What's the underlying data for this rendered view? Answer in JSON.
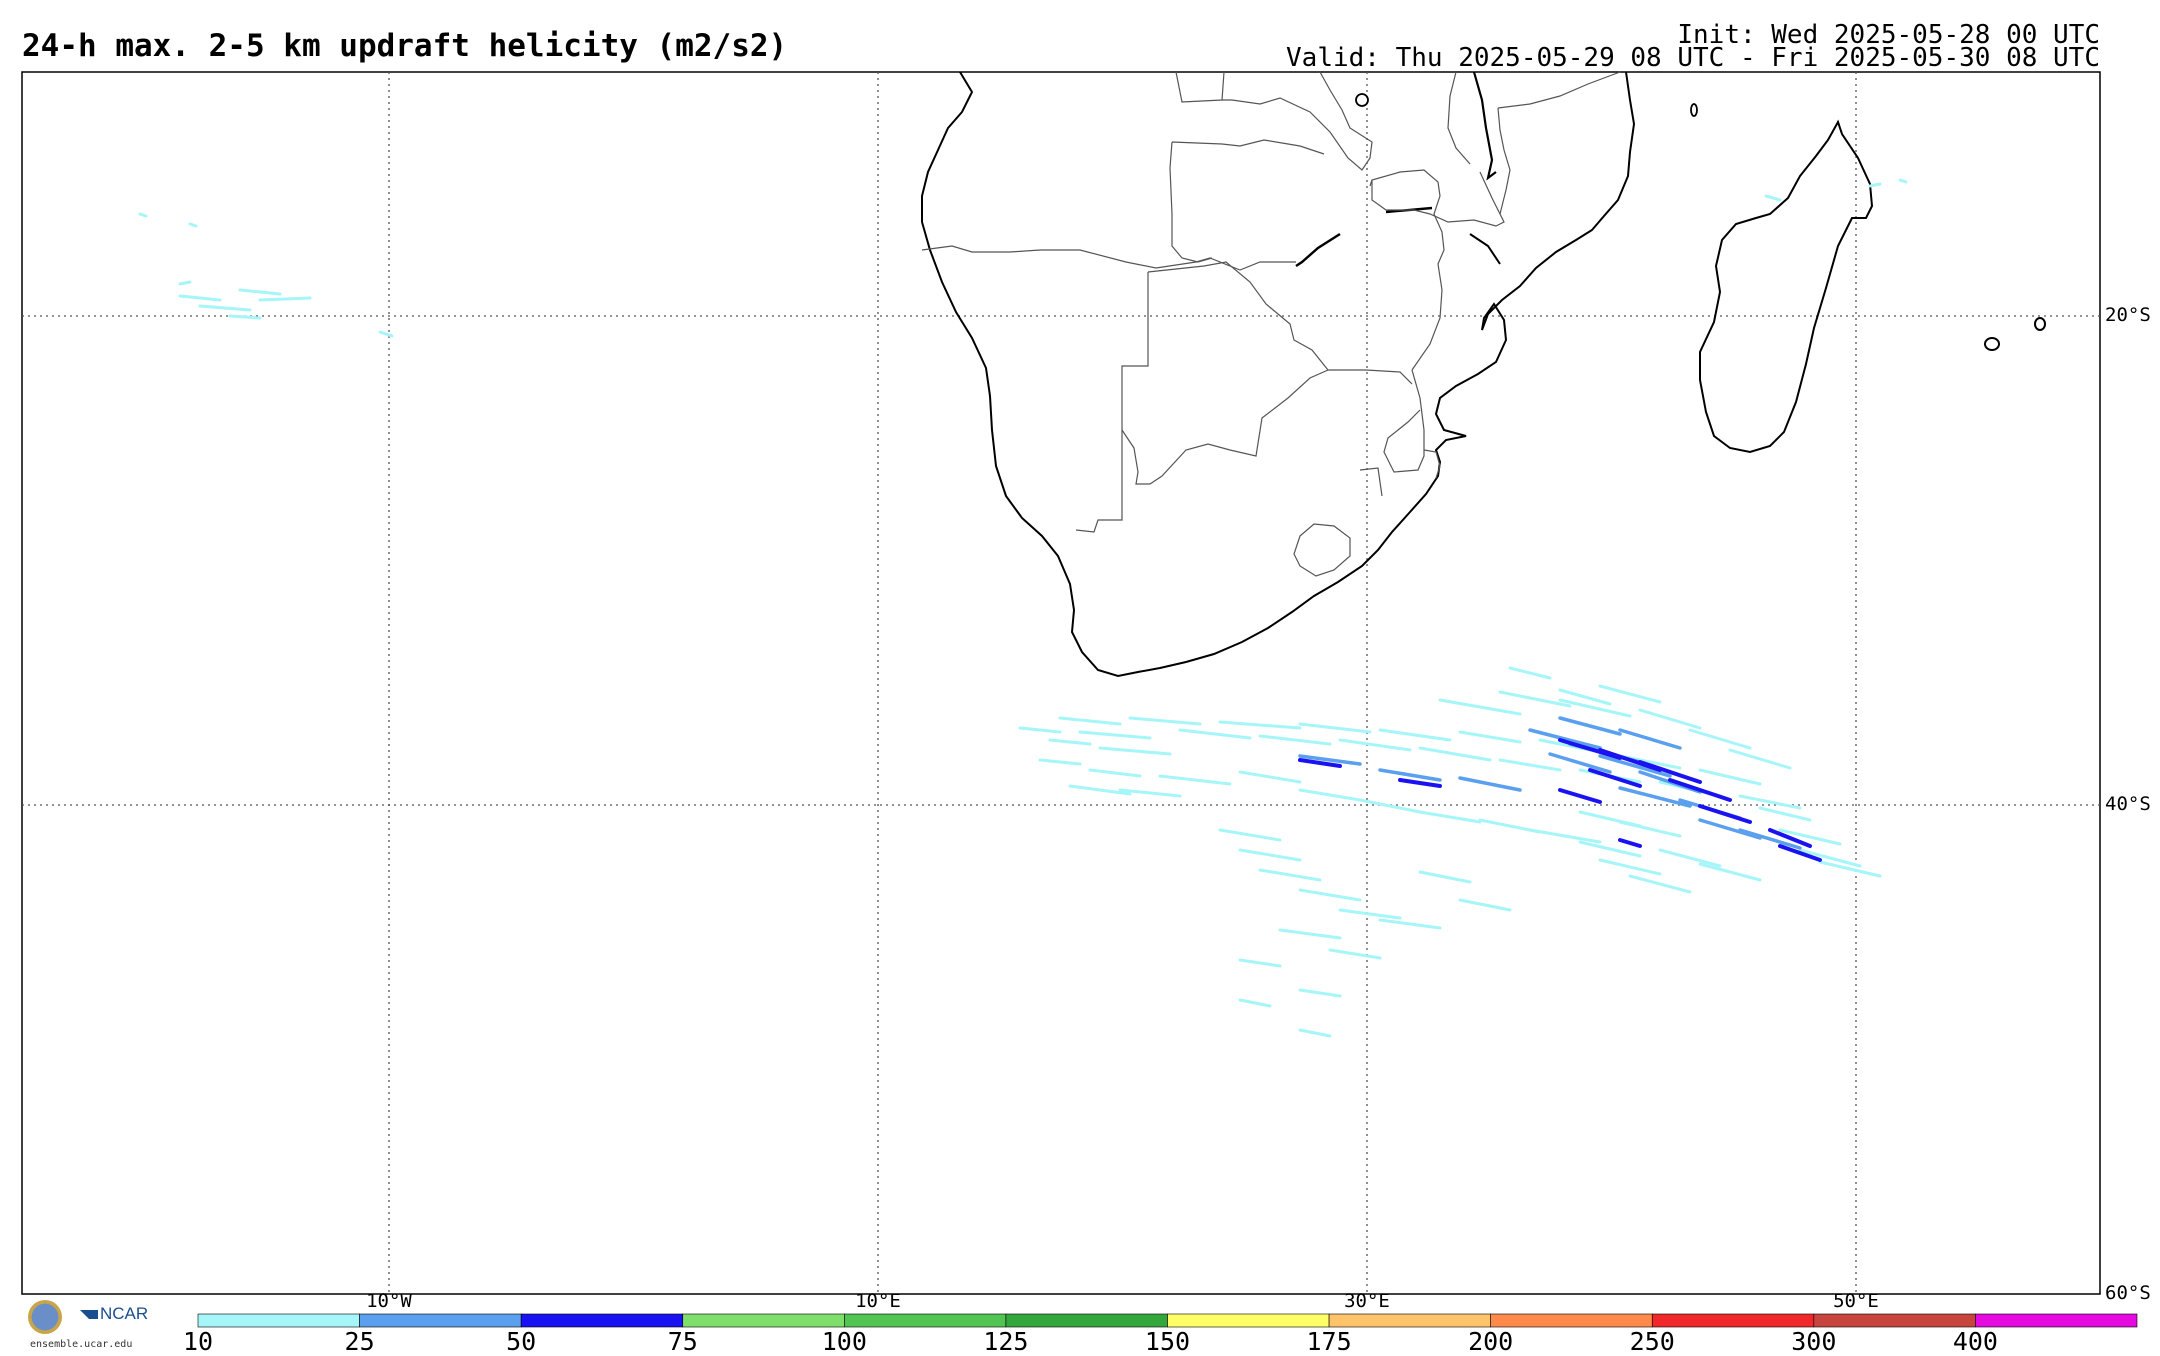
{
  "title": "24-h max. 2-5 km updraft helicity (m2/s2)",
  "init": "Init: Wed 2025-05-28 00 UTC",
  "valid": "Valid: Thu 2025-05-29 08 UTC - Fri 2025-05-30 08 UTC",
  "map": {
    "region": "Southern Africa and South Atlantic / Southwest Indian Ocean",
    "border_color": "#000000",
    "gridline_style": "dotted",
    "lat_labels": [
      "20°S",
      "40°S",
      "60°S"
    ],
    "lon_labels": [
      "10°W",
      "10°E",
      "30°E",
      "50°E"
    ],
    "features": [
      "africa-coastline",
      "madagascar",
      "country-borders",
      "updraft-helicity-swaths"
    ]
  },
  "colorbar": {
    "ticks": [
      "10",
      "25",
      "50",
      "75",
      "100",
      "125",
      "150",
      "175",
      "200",
      "250",
      "300",
      "400"
    ],
    "colors": [
      "#a6f5f8",
      "#5aa0ee",
      "#1a12f0",
      "#7ee06a",
      "#52c452",
      "#33a63c",
      "#ffff66",
      "#ffc46a",
      "#ff8a4c",
      "#f0282a",
      "#c8443f",
      "#e40ae0"
    ]
  },
  "footer": {
    "logo_nsf": "NSF",
    "logo_ncar": "NCAR",
    "url": "ensemble.ucar.edu"
  }
}
